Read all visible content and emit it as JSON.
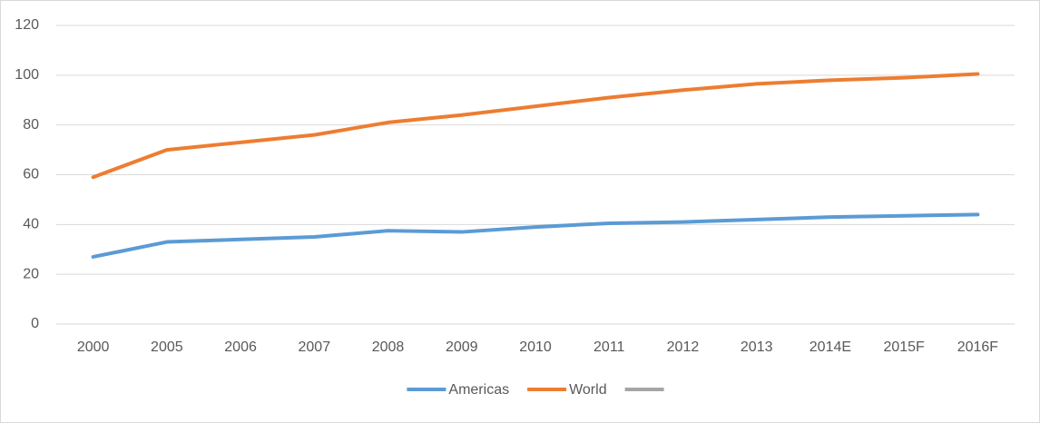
{
  "chart_data": {
    "type": "line",
    "categories": [
      "2000",
      "2005",
      "2006",
      "2007",
      "2008",
      "2009",
      "2010",
      "2011",
      "2012",
      "2013",
      "2014E",
      "2015F",
      "2016F"
    ],
    "series": [
      {
        "name": "Americas",
        "color": "#5b9bd5",
        "values": [
          27,
          33,
          34,
          35,
          37.5,
          37,
          39,
          40.5,
          41,
          42,
          43,
          43.5,
          44
        ]
      },
      {
        "name": "World",
        "color": "#ed7d31",
        "values": [
          59,
          70,
          73,
          76,
          81,
          84,
          87.5,
          91,
          94,
          96.5,
          98,
          99,
          100.5
        ]
      },
      {
        "name": null,
        "color": "#a5a5a5",
        "values": [
          null,
          null,
          null,
          null,
          null,
          null,
          null,
          null,
          null,
          null,
          null,
          null,
          null
        ]
      }
    ],
    "ylim": [
      0,
      120
    ],
    "yticks": [
      0,
      20,
      40,
      60,
      80,
      100,
      120
    ],
    "grid": true,
    "legend": "bottom"
  }
}
